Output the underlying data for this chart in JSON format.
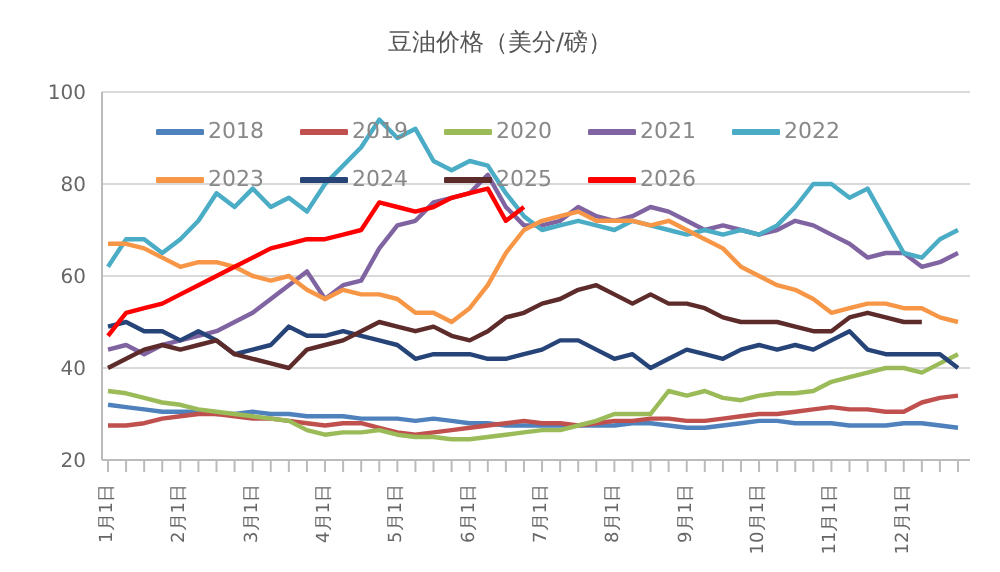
{
  "chart_data": {
    "type": "line",
    "title": "豆油价格（美分/磅）",
    "categories": [
      "1月1日",
      null,
      null,
      null,
      "2月1日",
      null,
      null,
      null,
      "3月1日",
      null,
      null,
      null,
      "4月1日",
      null,
      null,
      null,
      "5月1日",
      null,
      null,
      null,
      "6月1日",
      null,
      null,
      null,
      "7月1日",
      null,
      null,
      null,
      "8月1日",
      null,
      null,
      null,
      "9月1日",
      null,
      null,
      null,
      "10月1日",
      null,
      null,
      null,
      "11月1日",
      null,
      null,
      null,
      "12月1日",
      null,
      null,
      null
    ],
    "series": [
      {
        "name": "2018",
        "color": "#4f81bd",
        "values": [
          32,
          31.5,
          31,
          30.5,
          30.5,
          30.5,
          30,
          30,
          30.5,
          30,
          30,
          29.5,
          29.5,
          29.5,
          29,
          29,
          29,
          28.5,
          29,
          28.5,
          28,
          28,
          27.5,
          27.5,
          27.5,
          27.5,
          27.5,
          27.5,
          27.5,
          28,
          28,
          27.5,
          27,
          27,
          27.5,
          28,
          28.5,
          28.5,
          28,
          28,
          28,
          27.5,
          27.5,
          27.5,
          28,
          28,
          27.5,
          27
        ]
      },
      {
        "name": "2019",
        "color": "#c0504d",
        "values": [
          27.5,
          27.5,
          28,
          29,
          29.5,
          30,
          30,
          29.5,
          29,
          29,
          28.5,
          28,
          27.5,
          28,
          28,
          27,
          26,
          25.5,
          26,
          26.5,
          27,
          27.5,
          28,
          28.5,
          28,
          28,
          27.5,
          28,
          28.5,
          28.5,
          29,
          29,
          28.5,
          28.5,
          29,
          29.5,
          30,
          30,
          30.5,
          31,
          31.5,
          31,
          31,
          30.5,
          30.5,
          32.5,
          33.5,
          34
        ]
      },
      {
        "name": "2020",
        "color": "#9bbb59",
        "values": [
          35,
          34.5,
          33.5,
          32.5,
          32,
          31,
          30.5,
          30,
          29.5,
          29,
          28.5,
          26.5,
          25.5,
          26,
          26,
          26.5,
          25.5,
          25,
          25,
          24.5,
          24.5,
          25,
          25.5,
          26,
          26.5,
          26.5,
          27.5,
          28.5,
          30,
          30,
          30,
          35,
          34,
          35,
          33.5,
          33,
          34,
          34.5,
          34.5,
          35,
          37,
          38,
          39,
          40,
          40,
          39,
          41,
          43
        ]
      },
      {
        "name": "2021",
        "color": "#8064a2",
        "values": [
          44,
          45,
          43,
          45,
          46,
          47,
          48,
          50,
          52,
          55,
          58,
          61,
          55,
          58,
          59,
          66,
          71,
          72,
          76,
          77,
          78,
          82,
          75,
          71,
          71,
          72,
          75,
          73,
          72,
          73,
          75,
          74,
          72,
          70,
          71,
          70,
          69,
          70,
          72,
          71,
          69,
          67,
          64,
          65,
          65,
          62,
          63,
          65
        ]
      },
      {
        "name": "2022",
        "color": "#4bacc6",
        "values": [
          62,
          68,
          68,
          65,
          68,
          72,
          78,
          75,
          79,
          75,
          77,
          74,
          80,
          84,
          88,
          94,
          90,
          92,
          85,
          83,
          85,
          84,
          78,
          73,
          70,
          71,
          72,
          71,
          70,
          72,
          71,
          70,
          69,
          70,
          69,
          70,
          69,
          71,
          75,
          80,
          80,
          77,
          79,
          72,
          65,
          64,
          68,
          70
        ]
      },
      {
        "name": "2023",
        "color": "#f79646",
        "values": [
          67,
          67,
          66,
          64,
          62,
          63,
          63,
          62,
          60,
          59,
          60,
          57,
          55,
          57,
          56,
          56,
          55,
          52,
          52,
          50,
          53,
          58,
          65,
          70,
          72,
          73,
          74,
          72,
          72,
          72,
          71,
          72,
          70,
          68,
          66,
          62,
          60,
          58,
          57,
          55,
          52,
          53,
          54,
          54,
          53,
          53,
          51,
          50
        ]
      },
      {
        "name": "2024",
        "color": "#264478",
        "values": [
          49,
          50,
          48,
          48,
          46,
          48,
          46,
          43,
          44,
          45,
          49,
          47,
          47,
          48,
          47,
          46,
          45,
          42,
          43,
          43,
          43,
          42,
          42,
          43,
          44,
          46,
          46,
          44,
          42,
          43,
          40,
          42,
          44,
          43,
          42,
          44,
          45,
          44,
          45,
          44,
          46,
          48,
          44,
          43,
          43,
          43,
          43,
          40
        ]
      },
      {
        "name": "2025",
        "color": "#5e2b2b",
        "values": [
          40,
          42,
          44,
          45,
          44,
          45,
          46,
          43,
          42,
          41,
          40,
          44,
          45,
          46,
          48,
          50,
          49,
          48,
          49,
          47,
          46,
          48,
          51,
          52,
          54,
          55,
          57,
          58,
          56,
          54,
          56,
          54,
          54,
          53,
          51,
          50,
          50,
          50,
          49,
          48,
          48,
          51,
          52,
          51,
          50,
          50,
          null,
          null
        ]
      },
      {
        "name": "2026",
        "color": "#ff0000",
        "values": [
          47,
          52,
          53,
          54,
          56,
          58,
          60,
          62,
          64,
          66,
          67,
          68,
          68,
          69,
          70,
          76,
          75,
          74,
          75,
          77,
          78,
          79,
          72,
          75,
          null,
          null,
          null,
          null,
          null,
          null,
          null,
          null,
          null,
          null,
          null,
          null,
          null,
          null,
          null,
          null,
          null,
          null,
          null,
          null,
          null,
          null,
          null,
          null
        ]
      }
    ],
    "ylim": [
      20,
      100
    ],
    "yticks": [
      20,
      40,
      60,
      80,
      100
    ],
    "grid": "y",
    "legend": "top",
    "marker": "none",
    "line_style": "solid"
  }
}
